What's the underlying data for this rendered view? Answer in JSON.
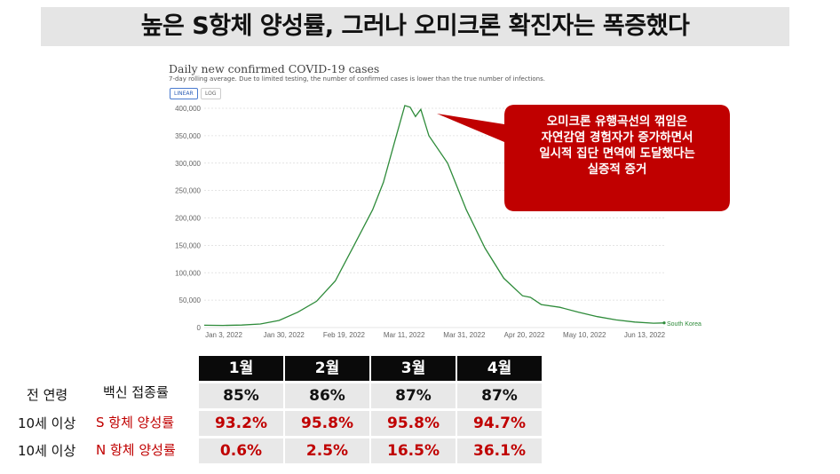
{
  "slide": {
    "title": "높은 S항체 양성률, 그러나 오미크론 확진자는 폭증했다"
  },
  "chart_data": {
    "type": "line",
    "title": "Daily new confirmed COVID-19 cases",
    "subtitle": "7-day rolling average. Due to limited testing, the number of confirmed cases is lower than the true number of infections.",
    "toggle_options": [
      "LINEAR",
      "LOG"
    ],
    "toggle_selected": "LINEAR",
    "x_tick_labels": [
      "Jan 3, 2022",
      "Jan 30, 2022",
      "Feb 19, 2022",
      "Mar 11, 2022",
      "Mar 31, 2022",
      "Apr 20, 2022",
      "May 10, 2022",
      "Jun 13, 2022"
    ],
    "y_tick_labels": [
      "0",
      "50,000",
      "100,000",
      "150,000",
      "200,000",
      "250,000",
      "300,000",
      "350,000",
      "400,000"
    ],
    "ylim": [
      0,
      400000
    ],
    "grid": true,
    "series": [
      {
        "name": "South Korea",
        "color": "#2e8b3a",
        "points": [
          [
            "2022-01-01",
            4200
          ],
          [
            "2022-01-08",
            3900
          ],
          [
            "2022-01-15",
            4500
          ],
          [
            "2022-01-22",
            6500
          ],
          [
            "2022-01-29",
            13000
          ],
          [
            "2022-02-05",
            28000
          ],
          [
            "2022-02-12",
            48000
          ],
          [
            "2022-02-19",
            85000
          ],
          [
            "2022-02-26",
            150000
          ],
          [
            "2022-03-05",
            215000
          ],
          [
            "2022-03-09",
            265000
          ],
          [
            "2022-03-13",
            335000
          ],
          [
            "2022-03-17",
            405000
          ],
          [
            "2022-03-19",
            402000
          ],
          [
            "2022-03-21",
            385000
          ],
          [
            "2022-03-23",
            398000
          ],
          [
            "2022-03-26",
            350000
          ],
          [
            "2022-04-02",
            300000
          ],
          [
            "2022-04-09",
            215000
          ],
          [
            "2022-04-16",
            145000
          ],
          [
            "2022-04-23",
            90000
          ],
          [
            "2022-04-30",
            58000
          ],
          [
            "2022-05-03",
            55000
          ],
          [
            "2022-05-07",
            42000
          ],
          [
            "2022-05-14",
            37000
          ],
          [
            "2022-05-21",
            28000
          ],
          [
            "2022-05-28",
            20000
          ],
          [
            "2022-06-04",
            14000
          ],
          [
            "2022-06-11",
            10000
          ],
          [
            "2022-06-18",
            8000
          ],
          [
            "2022-06-22",
            8500
          ]
        ]
      }
    ],
    "x_start": "2022-01-01",
    "x_end": "2022-06-22"
  },
  "callout": {
    "color": "#c00000",
    "lines": [
      "오미크론 유행곡선의 꺾임은",
      "자연감염 경험자가 증가하면서",
      "일시적 집단 면역에 도달했다는",
      "실증적 증거"
    ]
  },
  "table": {
    "months": [
      "1월",
      "2월",
      "3월",
      "4월"
    ],
    "rows": [
      {
        "group": "전 연령",
        "metric": "백신 접종률",
        "values": [
          "85%",
          "86%",
          "87%",
          "87%"
        ]
      },
      {
        "group": "10세 이상",
        "metric": "S 항체 양성률",
        "values": [
          "93.2%",
          "95.8%",
          "95.8%",
          "94.7%"
        ]
      },
      {
        "group": "10세 이상",
        "metric": "N 항체 양성률",
        "values": [
          "0.6%",
          "2.5%",
          "16.5%",
          "36.1%"
        ]
      }
    ]
  }
}
